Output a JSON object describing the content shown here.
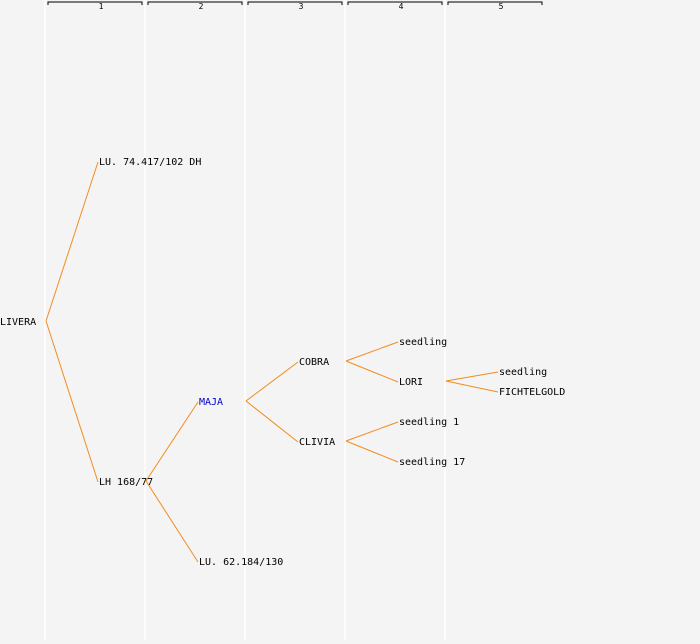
{
  "generations": [
    "1",
    "2",
    "3",
    "4",
    "5"
  ],
  "colors": {
    "edge": "#f28c1e",
    "highlight": "#0000cc",
    "background": "#f4f4f4"
  },
  "nodes": {
    "livera": "LIVERA",
    "lu74417": "LU. 74.417/102 DH",
    "lh168": "LH 168/77",
    "maja": "MAJA",
    "lu62184": "LU. 62.184/130",
    "cobra": "COBRA",
    "clivia": "CLIVIA",
    "cobra_seedling": "seedling",
    "lori": "LORI",
    "clivia_seedling1": "seedling 1",
    "clivia_seedling17": "seedling 17",
    "lori_seedling": "seedling",
    "fichtelgold": "FICHTELGOLD"
  }
}
